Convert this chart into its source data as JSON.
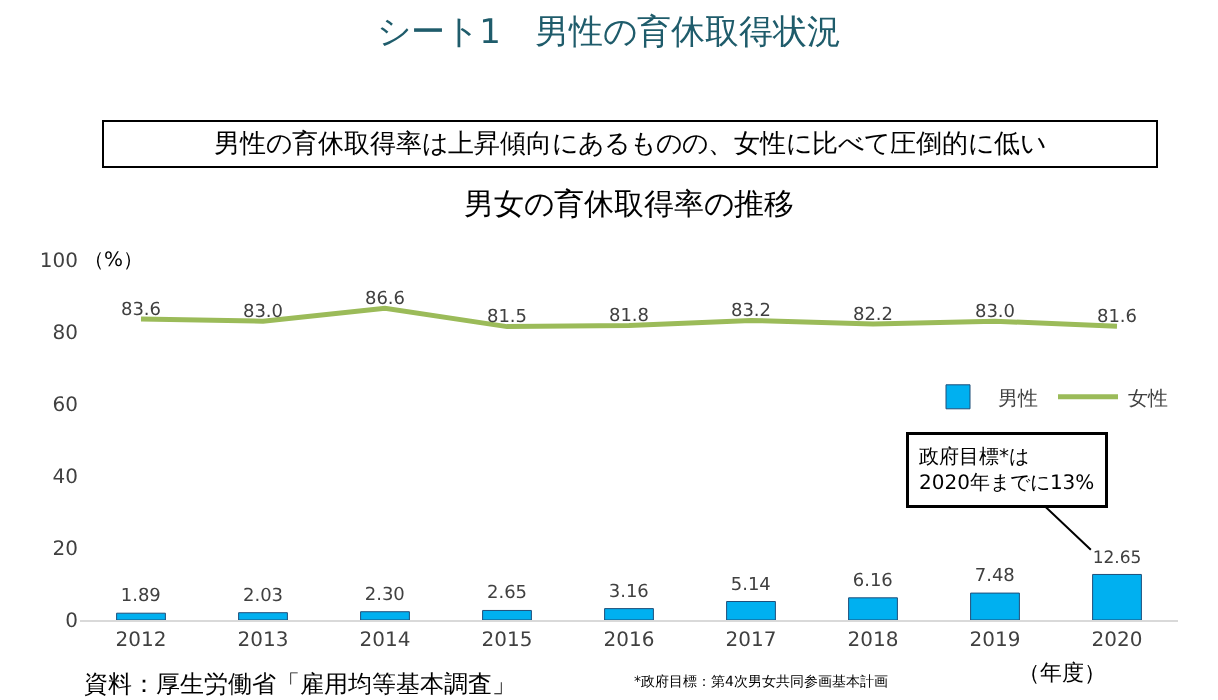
{
  "chart_data": {
    "type": "bar",
    "title": "シート1　男性の育休取得状況",
    "subtitle": "男性の育休取得率は上昇傾向にあるものの、女性に比べて圧倒的に低い",
    "ylabel": "（%）",
    "xlabel": "（年度）",
    "categories": [
      "2012",
      "2013",
      "2014",
      "2015",
      "2016",
      "2017",
      "2018",
      "2019",
      "2020"
    ],
    "series": [
      {
        "name": "男性",
        "color": "#00b0f0",
        "values": [
          1.89,
          2.03,
          2.3,
          2.65,
          3.16,
          5.14,
          6.16,
          7.48,
          12.65
        ],
        "value_labels": [
          "1.89",
          "2.03",
          "2.30",
          "2.65",
          "3.16",
          "5.14",
          "6.16",
          "7.48",
          "12.65"
        ]
      },
      {
        "name": "女性",
        "type": "line",
        "color": "#9bbb59",
        "values": [
          83.6,
          83.0,
          86.6,
          81.5,
          81.8,
          83.2,
          82.2,
          83.0,
          81.6
        ],
        "value_labels": [
          "83.6",
          "83.0",
          "86.6",
          "81.5",
          "81.8",
          "83.2",
          "82.2",
          "83.0",
          "81.6"
        ]
      }
    ],
    "ylim": [
      0,
      100
    ],
    "yticks": [
      0,
      20,
      40,
      60,
      80,
      100
    ],
    "grid": false,
    "legend": "right",
    "marker": "none",
    "line_style": "solid",
    "annotations": [
      "男女の育休取得率の推移",
      {
        "text": "政府目標*は\n2020年までに13%",
        "x": "2020",
        "y": 12.65
      },
      "資料：厚生労働省「雇用均等基本調査」",
      "*政府目標：第4次男女共同参画基本計画"
    ]
  }
}
